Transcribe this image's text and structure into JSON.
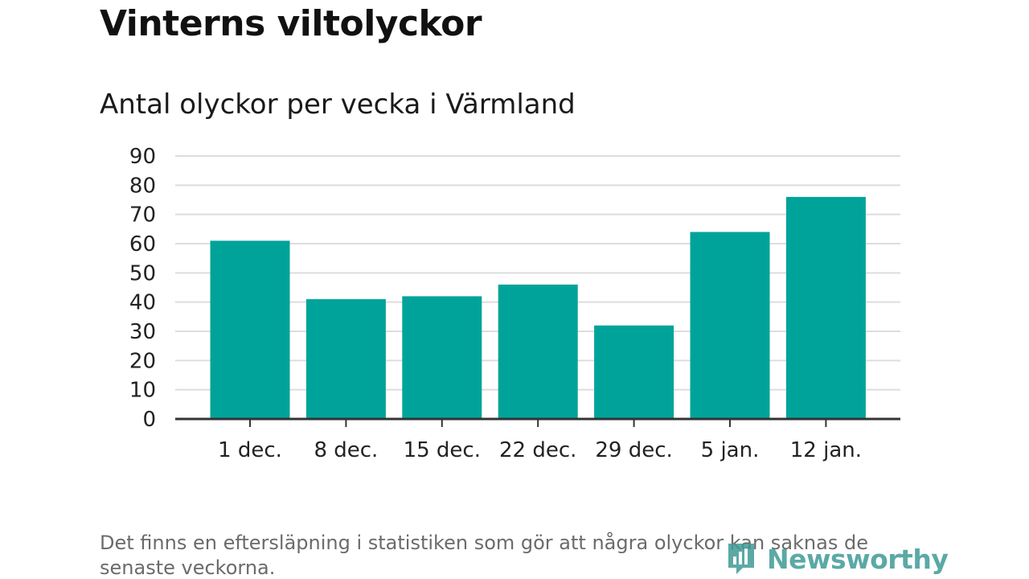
{
  "header": {
    "title": "Vinterns viltolyckor",
    "subtitle": "Antal olyckor per vecka i Värmland"
  },
  "chart_data": {
    "type": "bar",
    "title": "Vinterns viltolyckor",
    "subtitle": "Antal olyckor per vecka i Värmland",
    "categories": [
      "1 dec.",
      "8 dec.",
      "15 dec.",
      "22 dec.",
      "29 dec.",
      "5 jan.",
      "12 jan."
    ],
    "values": [
      61,
      41,
      42,
      46,
      32,
      64,
      76
    ],
    "yticks": [
      0,
      10,
      20,
      30,
      40,
      50,
      60,
      70,
      80,
      90
    ],
    "ylim": [
      0,
      90
    ],
    "grid": true,
    "bar_color": "#00a39a",
    "grid_color": "#dddddd",
    "axis_color": "#333333"
  },
  "footer": {
    "note": "Det finns en eftersläpning i statistiken som gör att några olyckor kan saknas de senaste veckorna.",
    "brand": "Newsworthy",
    "brand_icon": "newsworthy-logo-icon",
    "brand_color": "#3f9b96"
  }
}
